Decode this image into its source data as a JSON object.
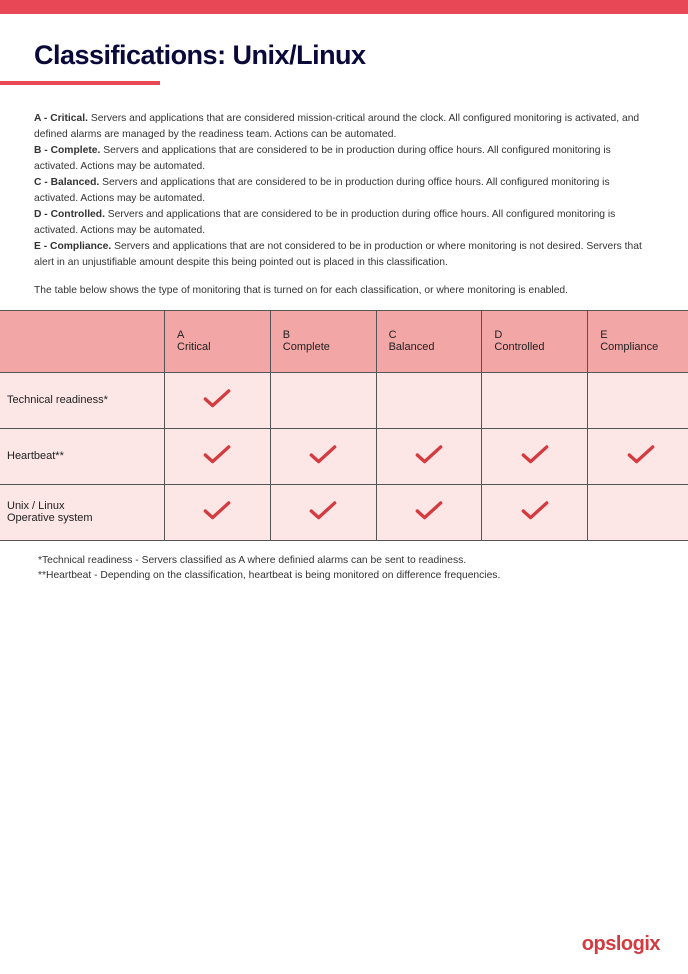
{
  "colors": {
    "accent": "#e84855",
    "header_row_bg": "#f3a6a6",
    "body_cell_bg": "#fce6e6",
    "border": "#555555",
    "check": "#d23b3f",
    "title": "#0a0a3a",
    "footer": "#d23b3f"
  },
  "title": "Classifications: Unix/Linux",
  "definitions": [
    {
      "label": "A - Critical.",
      "text": " Servers and applications that are considered mission-critical around the clock. All configured monitoring is activated, and defined alarms are managed by the readiness team. Actions can be automated."
    },
    {
      "label": "B - Complete.",
      "text": " Servers and applications that are considered to be in production during office hours. All configured monitoring is activated. Actions may be automated."
    },
    {
      "label": "C - Balanced.",
      "text": " Servers and applications that are considered to be in production during office hours.  All configured monitoring is activated. Actions may be automated."
    },
    {
      "label": "D - Controlled.",
      "text": " Servers and applications that are considered to be in production during office hours.  All configured monitoring is activated. Actions may be automated."
    },
    {
      "label": "E - Compliance.",
      "text": " Servers and applications that are not considered to be in production or where monitoring is not desired. Servers that alert in an unjustifiable amount despite this being pointed out is placed in this classification."
    }
  ],
  "caption": "The table below shows the type of monitoring that is turned on for each classification, or where monitoring is enabled.",
  "table": {
    "columns": [
      {
        "line1": "A",
        "line2": "Critical"
      },
      {
        "line1": "B",
        "line2": "Complete"
      },
      {
        "line1": "C",
        "line2": "Balanced"
      },
      {
        "line1": "D",
        "line2": "Controlled"
      },
      {
        "line1": "E",
        "line2": "Compliance"
      }
    ],
    "rows": [
      {
        "label": "Technical readiness*",
        "cells": [
          true,
          false,
          false,
          false,
          false
        ]
      },
      {
        "label": "Heartbeat**",
        "cells": [
          true,
          true,
          true,
          true,
          true
        ]
      },
      {
        "label": "Unix / Linux Operative system",
        "cells": [
          true,
          true,
          true,
          true,
          false
        ]
      }
    ]
  },
  "footnotes": [
    "*Technical readiness - Servers classified as A where definied alarms can be sent to readiness.",
    "**Heartbeat - Depending on the classification, heartbeat is being monitored on difference frequencies."
  ],
  "footer_brand": "opslogix"
}
